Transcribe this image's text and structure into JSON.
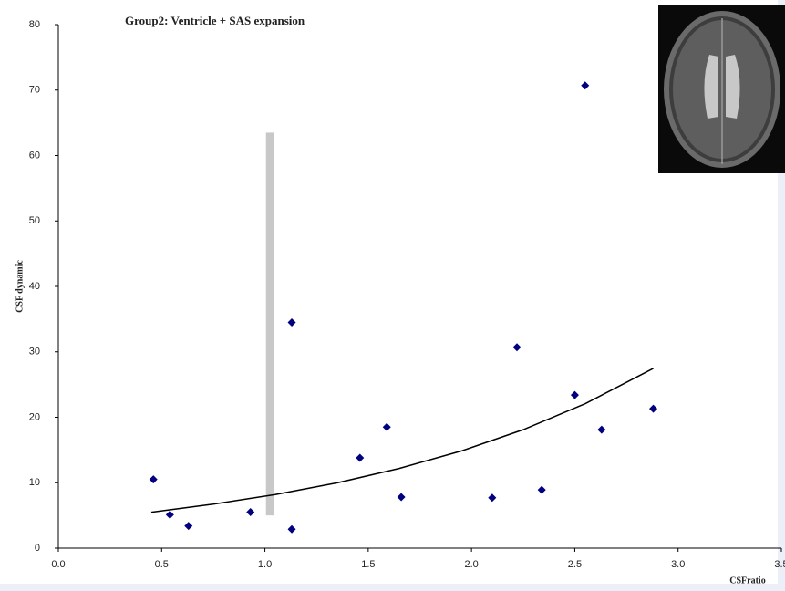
{
  "chart_data": {
    "type": "scatter",
    "title": "Group2: Ventricle + SAS expansion",
    "x_label": "CSFratio",
    "y_label": "CSF dynamic",
    "xlim": [
      0,
      3.5
    ],
    "ylim": [
      0,
      80
    ],
    "xticks": [
      {
        "value": 0,
        "label": "0.0"
      },
      {
        "value": 0.5,
        "label": "0.5"
      },
      {
        "value": 1,
        "label": "1.0"
      },
      {
        "value": 1.5,
        "label": "1.5"
      },
      {
        "value": 2,
        "label": "2.0"
      },
      {
        "value": 2.5,
        "label": "2.5"
      },
      {
        "value": 3,
        "label": "3.0"
      },
      {
        "value": 3.5,
        "label": "3.5"
      }
    ],
    "yticks": [
      0,
      10,
      20,
      30,
      40,
      50,
      60,
      70,
      80
    ],
    "color": "#000080",
    "x": [
      0.46,
      0.54,
      0.63,
      0.93,
      1.13,
      1.13,
      1.46,
      1.59,
      1.66,
      2.1,
      2.22,
      2.34,
      2.5,
      2.55,
      2.63,
      2.88
    ],
    "values": [
      10.5,
      5.1,
      3.4,
      5.5,
      2.9,
      34.5,
      13.8,
      18.5,
      7.8,
      7.7,
      30.7,
      8.9,
      23.4,
      70.7,
      18.1,
      21.3
    ],
    "trendline": {
      "color": "#000000",
      "x": [
        0.45,
        0.75,
        1.05,
        1.35,
        1.65,
        1.95,
        2.25,
        2.55,
        2.88
      ],
      "values": [
        5.49,
        6.72,
        8.19,
        9.98,
        12.18,
        14.84,
        18.1,
        22.07,
        27.46
      ]
    },
    "band": {
      "color": "#c8c8c8",
      "x": 1.025,
      "values": [
        5,
        63.5
      ]
    }
  }
}
